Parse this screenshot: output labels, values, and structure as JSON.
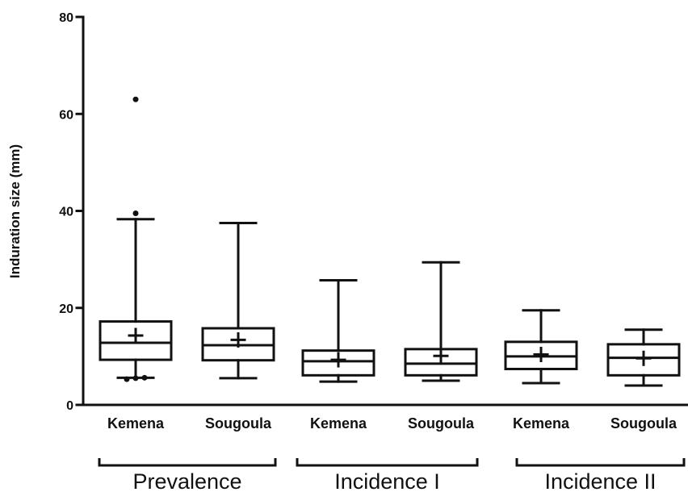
{
  "chart_data": {
    "type": "box",
    "ylabel": "Induration size (mm)",
    "xlabel": "",
    "ylim": [
      0,
      80
    ],
    "yticks": [
      0,
      20,
      40,
      60,
      80
    ],
    "grid": false,
    "categories": [
      "Kemena",
      "Sougoula",
      "Kemena",
      "Sougoula",
      "Kemena",
      "Sougoula"
    ],
    "groups": [
      {
        "label": "Prevalence",
        "categories": [
          0,
          1
        ]
      },
      {
        "label": "Incidence I",
        "categories": [
          2,
          3
        ]
      },
      {
        "label": "Incidence II",
        "categories": [
          4,
          5
        ]
      }
    ],
    "boxes": [
      {
        "whisker_low": 5.6,
        "q1": 9.3,
        "median": 12.8,
        "q3": 17.2,
        "whisker_high": 38.3,
        "mean": 14.3,
        "outliers": [
          63.0,
          39.5,
          5.3,
          5.5,
          5.6
        ]
      },
      {
        "whisker_low": 5.5,
        "q1": 9.2,
        "median": 12.3,
        "q3": 15.8,
        "whisker_high": 37.5,
        "mean": 13.4,
        "outliers": []
      },
      {
        "whisker_low": 4.8,
        "q1": 6.1,
        "median": 9.0,
        "q3": 11.2,
        "whisker_high": 25.7,
        "mean": 9.3,
        "outliers": []
      },
      {
        "whisker_low": 5.0,
        "q1": 6.1,
        "median": 8.5,
        "q3": 11.5,
        "whisker_high": 29.4,
        "mean": 10.1,
        "outliers": []
      },
      {
        "whisker_low": 4.5,
        "q1": 7.4,
        "median": 10.0,
        "q3": 13.0,
        "whisker_high": 19.5,
        "mean": 10.4,
        "outliers": []
      },
      {
        "whisker_low": 4.0,
        "q1": 6.1,
        "median": 9.7,
        "q3": 12.5,
        "whisker_high": 15.5,
        "mean": 9.6,
        "outliers": []
      }
    ]
  }
}
